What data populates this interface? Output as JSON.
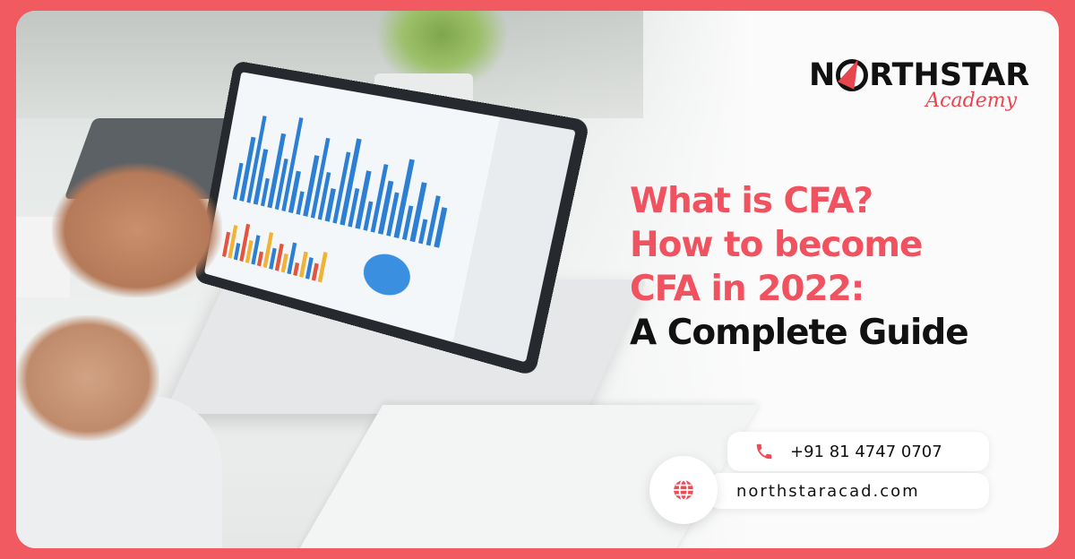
{
  "brand": {
    "name": "NORTHSTAR",
    "sub": "Academy",
    "accent": "#f0525f",
    "frame_color": "#f25a62"
  },
  "headline": {
    "lines": [
      "What is CFA?",
      "How to become",
      "CFA in 2022:",
      "A Complete Guide"
    ]
  },
  "contact": {
    "phone": "+91 81 4747 0707",
    "phone_icon": "phone-icon",
    "website": "northstaracad.com",
    "website_icon": "globe-icon"
  }
}
